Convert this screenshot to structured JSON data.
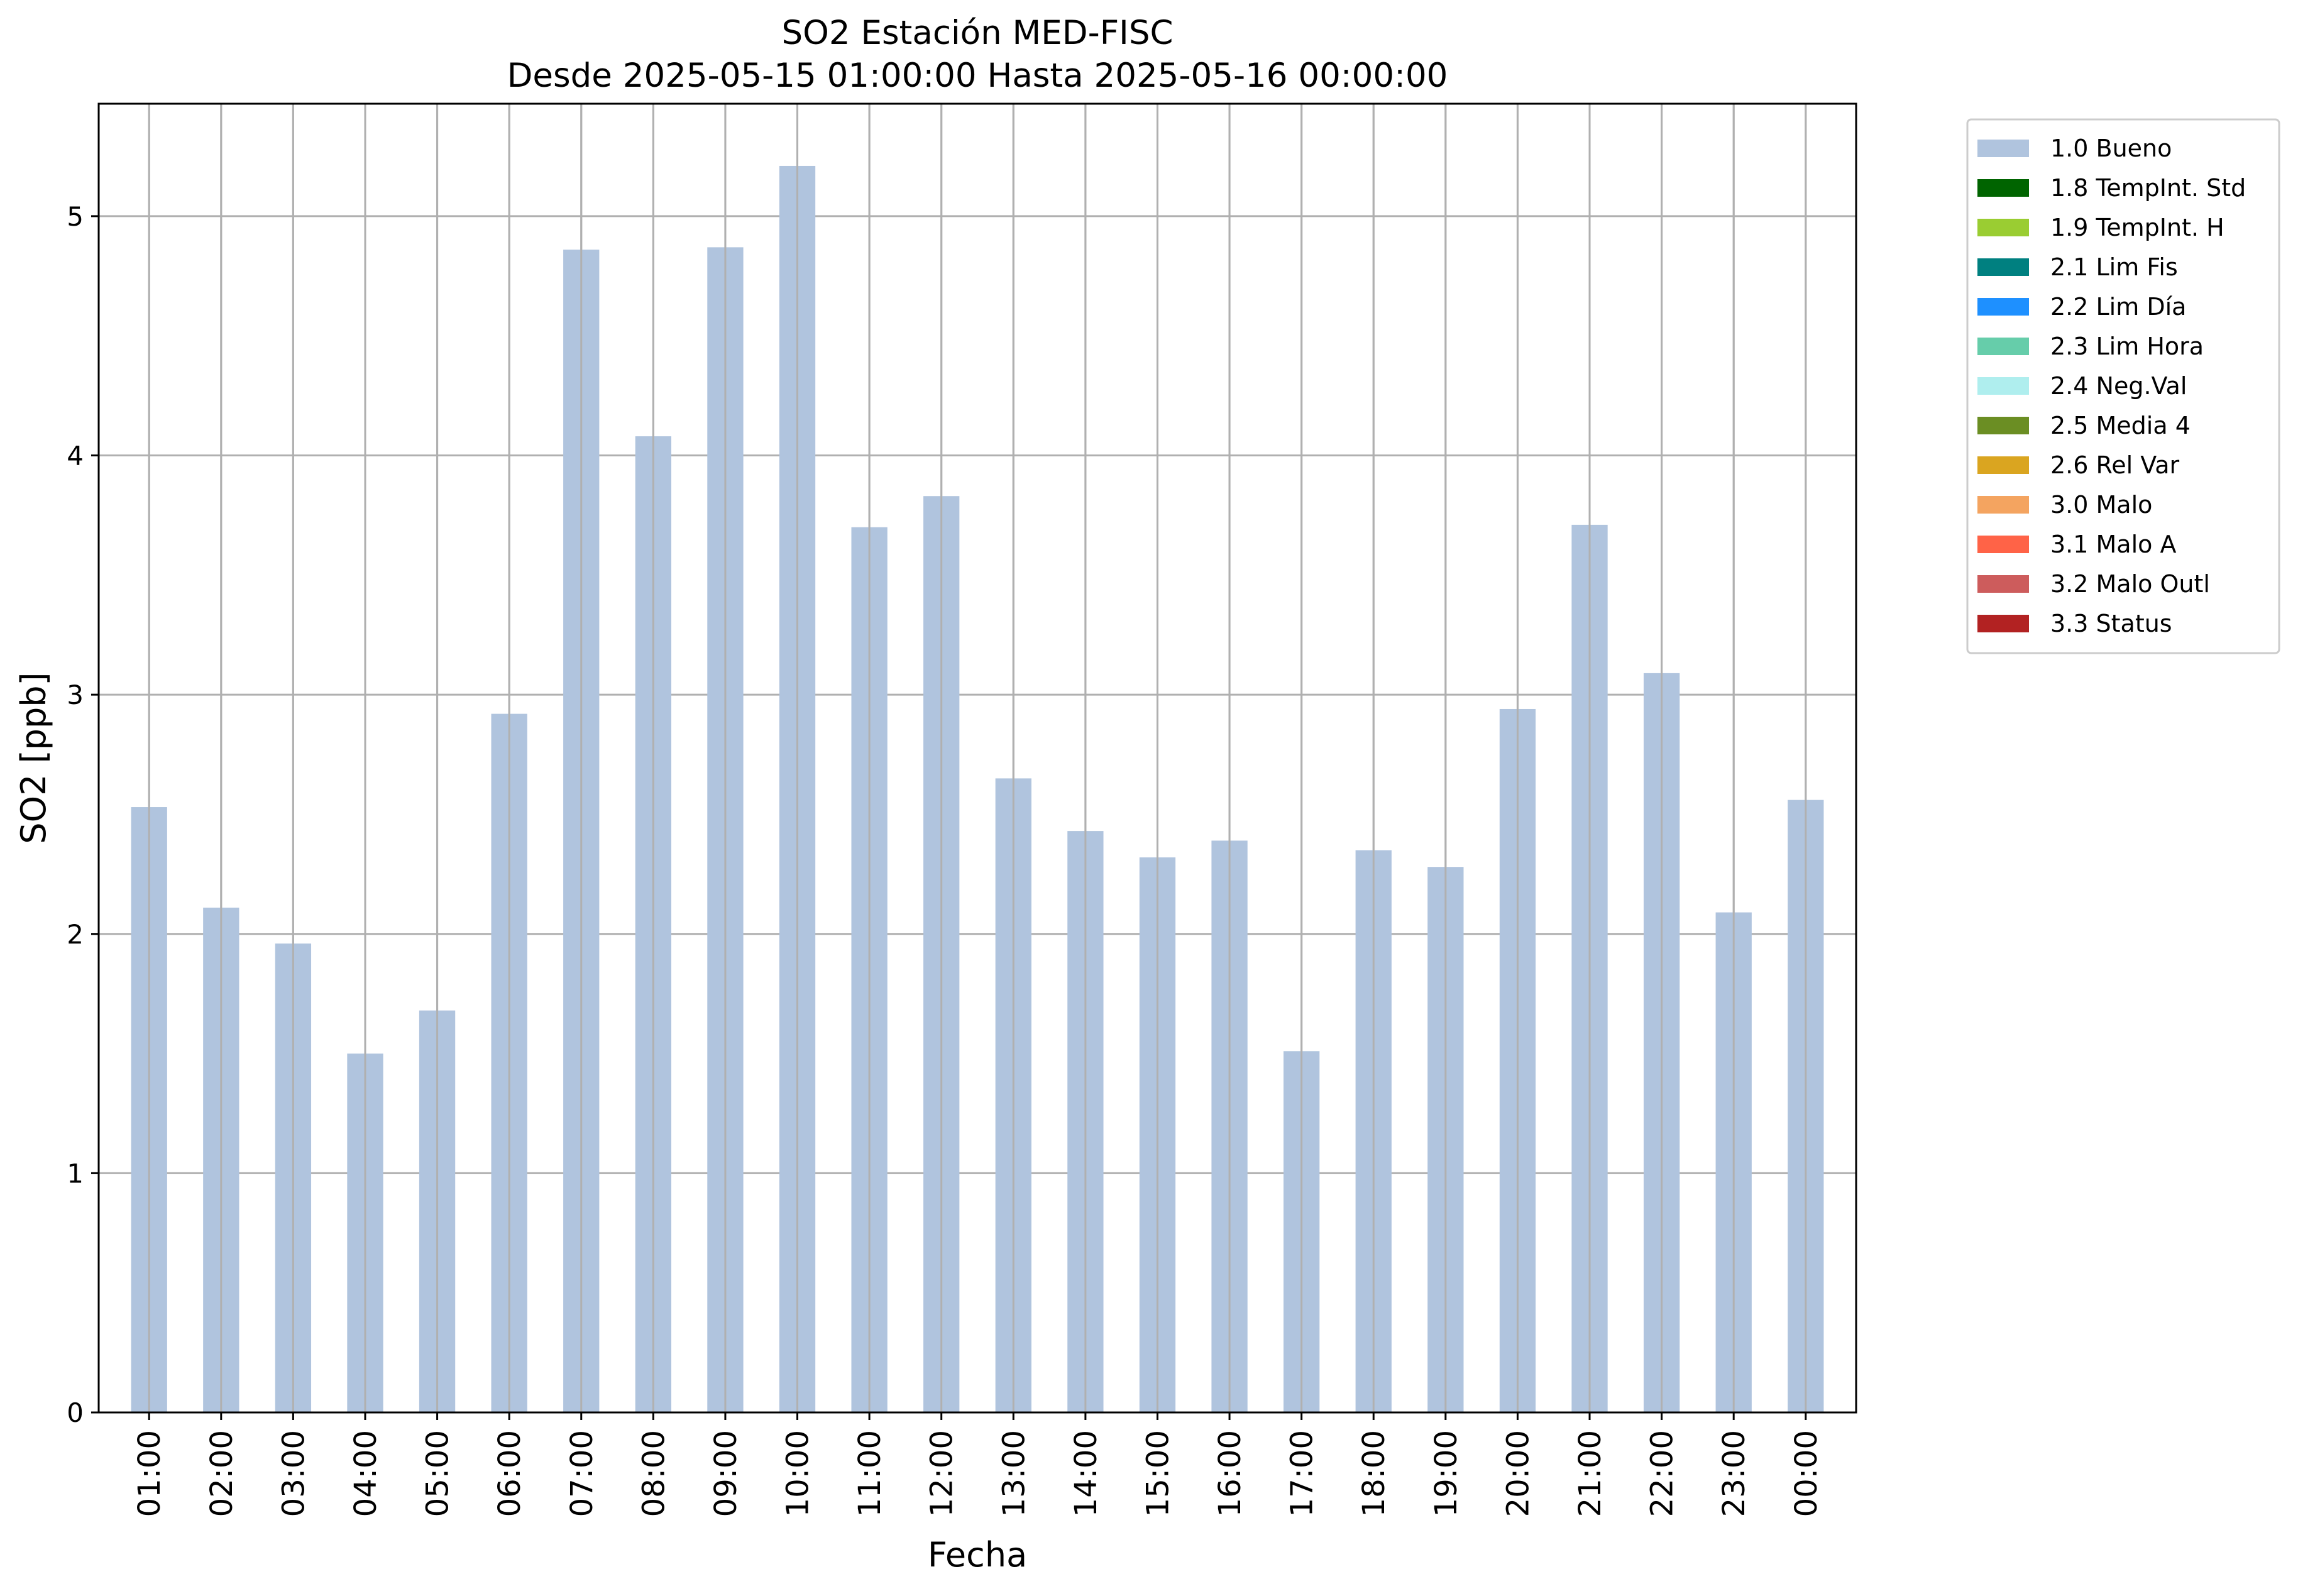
{
  "chart_data": {
    "type": "bar",
    "title": "SO2 Estación MED-FISC",
    "subtitle": "Desde 2025-05-15 01:00:00 Hasta 2025-05-16 00:00:00",
    "xlabel": "Fecha",
    "ylabel": "SO2 [ppb]",
    "ylim": [
      0,
      5.47
    ],
    "yticks": [
      0,
      1,
      2,
      3,
      4,
      5
    ],
    "grid": true,
    "legend_position": "outside-top-right",
    "categories": [
      "01:00",
      "02:00",
      "03:00",
      "04:00",
      "05:00",
      "06:00",
      "07:00",
      "08:00",
      "09:00",
      "10:00",
      "11:00",
      "12:00",
      "13:00",
      "14:00",
      "15:00",
      "16:00",
      "17:00",
      "18:00",
      "19:00",
      "20:00",
      "21:00",
      "22:00",
      "23:00",
      "00:00"
    ],
    "series": [
      {
        "name": "1.0 Bueno",
        "color": "#b0c4de",
        "values": [
          2.53,
          2.11,
          1.96,
          1.5,
          1.68,
          2.92,
          4.86,
          4.08,
          4.87,
          5.21,
          3.7,
          3.83,
          2.65,
          2.43,
          2.32,
          2.39,
          1.51,
          2.35,
          2.28,
          2.94,
          3.71,
          3.09,
          2.09,
          2.56
        ]
      }
    ],
    "legend": [
      {
        "label": "1.0 Bueno",
        "color": "#b0c4de"
      },
      {
        "label": "1.8 TempInt. Std",
        "color": "#006400"
      },
      {
        "label": "1.9 TempInt. H",
        "color": "#9acd32"
      },
      {
        "label": "2.1 Lim Fis",
        "color": "#008080"
      },
      {
        "label": "2.2 Lim Día",
        "color": "#1e90ff"
      },
      {
        "label": "2.3 Lim Hora",
        "color": "#66cdaa"
      },
      {
        "label": "2.4 Neg.Val",
        "color": "#afeeee"
      },
      {
        "label": "2.5 Media 4",
        "color": "#6b8e23"
      },
      {
        "label": "2.6 Rel Var",
        "color": "#daa520"
      },
      {
        "label": "3.0 Malo",
        "color": "#f4a460"
      },
      {
        "label": "3.1 Malo A",
        "color": "#ff6347"
      },
      {
        "label": "3.2 Malo Outl",
        "color": "#cd5c5c"
      },
      {
        "label": "3.3 Status",
        "color": "#b22222"
      }
    ]
  }
}
